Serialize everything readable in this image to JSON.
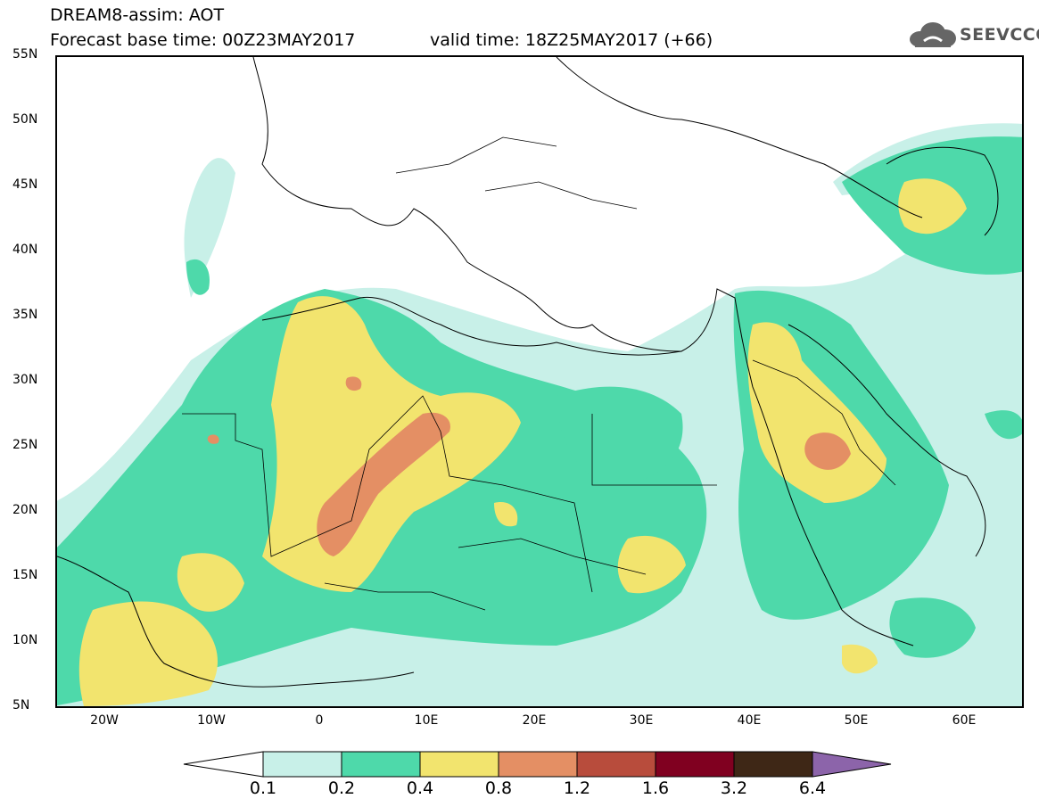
{
  "header": {
    "title": "DREAM8-assim: AOT",
    "base_time": "Forecast base time: 00Z23MAY2017",
    "valid_time": "valid time: 18Z25MAY2017 (+66)"
  },
  "logo": {
    "text": "SEEVCCC",
    "icon": "cloud-icon",
    "color": "#555555"
  },
  "map": {
    "lat_labels": [
      "55N",
      "50N",
      "45N",
      "40N",
      "35N",
      "30N",
      "25N",
      "20N",
      "15N",
      "10N",
      "5N"
    ],
    "lon_labels": [
      "20W",
      "10W",
      "0",
      "10E",
      "20E",
      "30E",
      "40E",
      "50E",
      "60E"
    ],
    "lat_range": [
      5,
      55
    ],
    "lon_range": [
      -25,
      65
    ]
  },
  "colorbar": {
    "labels": [
      "0.1",
      "0.2",
      "0.4",
      "0.8",
      "1.2",
      "1.6",
      "3.2",
      "6.4"
    ],
    "colors": [
      "#ffffff",
      "#c8f0e8",
      "#4ed9aa",
      "#f2e46e",
      "#e48f64",
      "#b84c3c",
      "#800020",
      "#3e2716",
      "#8c64aa"
    ]
  }
}
